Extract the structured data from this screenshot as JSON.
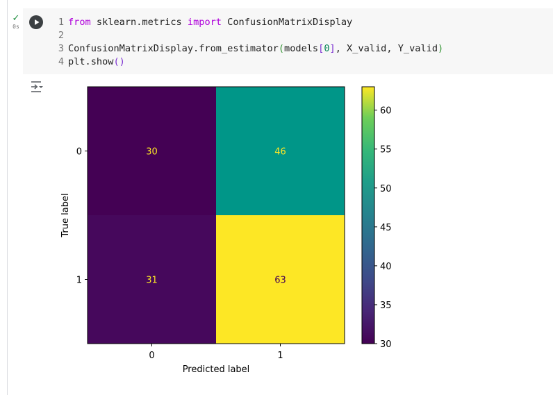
{
  "cell": {
    "exec_check": "✓",
    "exec_time": "0s",
    "code_lines": [
      {
        "no": "1",
        "parts": [
          {
            "t": "from",
            "c": "kw"
          },
          {
            "t": " sklearn.metrics ",
            "c": ""
          },
          {
            "t": "import",
            "c": "kw"
          },
          {
            "t": " ConfusionMatrixDisplay",
            "c": ""
          }
        ]
      },
      {
        "no": "2",
        "parts": []
      },
      {
        "no": "3",
        "parts": [
          {
            "t": "ConfusionMatrixDisplay.from_estimator",
            "c": ""
          },
          {
            "t": "(",
            "c": "br"
          },
          {
            "t": "models",
            "c": ""
          },
          {
            "t": "[",
            "c": "br2"
          },
          {
            "t": "0",
            "c": "num"
          },
          {
            "t": "]",
            "c": "br2"
          },
          {
            "t": ", X_valid, Y_valid",
            "c": ""
          },
          {
            "t": ")",
            "c": "br"
          }
        ]
      },
      {
        "no": "4",
        "parts": [
          {
            "t": "plt.show",
            "c": ""
          },
          {
            "t": "()",
            "c": "br2"
          }
        ]
      }
    ]
  },
  "icons": {
    "run": "play-icon",
    "output": "output-actions-icon",
    "status": "checkmark-icon"
  },
  "chart_data": {
    "type": "heatmap",
    "matrix": [
      [
        30,
        46
      ],
      [
        31,
        63
      ]
    ],
    "x_ticks": [
      "0",
      "1"
    ],
    "y_ticks": [
      "0",
      "1"
    ],
    "xlabel": "Predicted label",
    "ylabel": "True label",
    "colormap": "viridis",
    "colorbar": {
      "min": 30,
      "max": 63,
      "ticks": [
        30,
        35,
        40,
        45,
        50,
        55,
        60
      ]
    },
    "cell_colors": [
      [
        "#440154",
        "#009688"
      ],
      [
        "#46085c",
        "#fde725"
      ]
    ],
    "text_colors": [
      [
        "#fde725",
        "#fde725"
      ],
      [
        "#fde725",
        "#440154"
      ]
    ]
  }
}
